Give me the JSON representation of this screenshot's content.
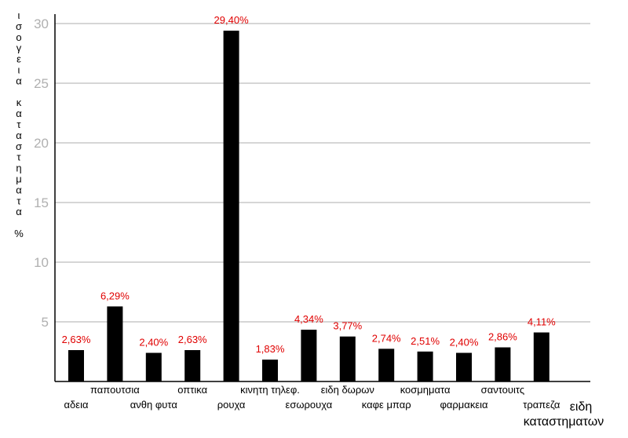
{
  "chart_data": {
    "type": "bar",
    "ylabel_chars": [
      "ι",
      "σ",
      "ο",
      "γ",
      "ε",
      "ι",
      "α",
      "",
      "κ",
      "α",
      "τ",
      "α",
      "σ",
      "τ",
      "η",
      "μ",
      "α",
      "τ",
      "α",
      "",
      "%"
    ],
    "ylabel": "ισογεια καταστηματα %",
    "xlabel_lines": [
      "ειδη",
      "καταστηματων"
    ],
    "xlabel": "ειδη καταστηματων",
    "ylim": [
      0,
      30
    ],
    "yticks": [
      5,
      10,
      15,
      20,
      25,
      30
    ],
    "grid": true,
    "categories": [
      "αδεια",
      "παπουτσια",
      "ανθη φυτα",
      "οπτικα",
      "ρουχα",
      "κινητη τηλεφ.",
      "εσωρουχα",
      "ειδη δωρων",
      "καφε μπαρ",
      "κοσμηματα",
      "φαρμακεια",
      "σαντουιτς",
      "τραπεζα"
    ],
    "values": [
      2.63,
      6.29,
      2.4,
      2.63,
      29.4,
      1.83,
      4.34,
      3.77,
      2.74,
      2.51,
      2.4,
      2.86,
      4.11
    ],
    "labels": [
      "2,63%",
      "6,29%",
      "2,40%",
      "2,63%",
      "29,40%",
      "1,83%",
      "4,34%",
      "3,77%",
      "2,74%",
      "2,51%",
      "2,40%",
      "2,86%",
      "4,11%"
    ],
    "label_row": [
      "lower",
      "upper",
      "lower",
      "upper",
      "lower",
      "upper",
      "lower",
      "upper",
      "lower",
      "upper",
      "lower",
      "upper",
      "lower"
    ],
    "colors": {
      "bar": "#000000",
      "label": "#e00000",
      "grid": "#c8c8c8",
      "tick": "#b0b0b0"
    }
  }
}
